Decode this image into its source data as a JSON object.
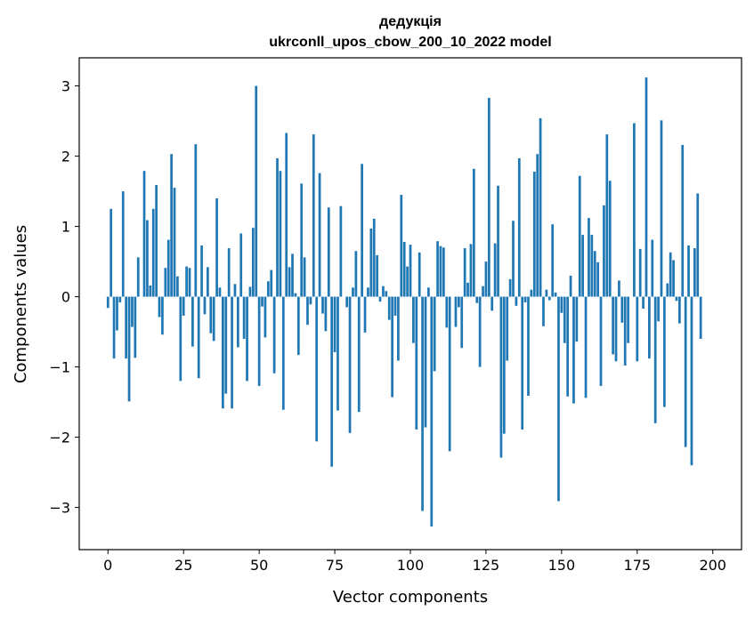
{
  "chart_data": {
    "type": "bar",
    "title": [
      "дедукція",
      "ukrconll_upos_cbow_200_10_2022 model"
    ],
    "xlabel": "Vector components",
    "ylabel": "Components values",
    "xlim": [
      -9.5,
      209.5
    ],
    "ylim": [
      -3.6,
      3.4
    ],
    "xticks": [
      0,
      25,
      50,
      75,
      100,
      125,
      150,
      175,
      200
    ],
    "xtick_labels": [
      "0",
      "25",
      "50",
      "75",
      "100",
      "125",
      "150",
      "175",
      "200"
    ],
    "yticks": [
      -3,
      -2,
      -1,
      0,
      1,
      2,
      3
    ],
    "ytick_labels": [
      "−3",
      "−2",
      "−1",
      "0",
      "1",
      "2",
      "3"
    ],
    "grid": false,
    "bar_color": "#1f77b4",
    "values": [
      -0.16,
      1.25,
      -0.88,
      -0.48,
      -0.08,
      1.5,
      -0.88,
      -1.49,
      -0.43,
      -0.87,
      0.56,
      0.0,
      1.79,
      1.09,
      0.16,
      1.25,
      1.59,
      -0.29,
      -0.54,
      0.41,
      0.81,
      2.03,
      1.55,
      0.29,
      -1.2,
      -0.27,
      0.43,
      0.41,
      -0.71,
      2.17,
      -1.16,
      0.73,
      -0.25,
      0.42,
      -0.52,
      -0.63,
      1.4,
      0.13,
      -1.59,
      -1.38,
      0.69,
      -1.59,
      0.18,
      -0.72,
      0.9,
      -0.6,
      -1.2,
      0.14,
      0.98,
      3.0,
      -1.27,
      -0.14,
      -0.58,
      0.22,
      0.38,
      -1.09,
      1.97,
      1.79,
      -1.61,
      2.33,
      0.42,
      0.61,
      0.05,
      -0.83,
      1.61,
      0.56,
      -0.4,
      -0.11,
      2.31,
      -2.06,
      1.76,
      -0.24,
      -0.49,
      1.27,
      -2.42,
      -0.79,
      -1.62,
      1.29,
      0.0,
      -0.15,
      -1.94,
      0.13,
      0.65,
      -1.64,
      1.89,
      -0.51,
      0.13,
      0.97,
      1.11,
      0.59,
      -0.07,
      0.15,
      0.08,
      -0.33,
      -1.43,
      -0.27,
      -0.91,
      1.45,
      0.78,
      0.43,
      0.74,
      -0.66,
      -1.89,
      0.63,
      -3.05,
      -1.86,
      0.13,
      -3.27,
      -1.06,
      0.79,
      0.72,
      0.7,
      -0.44,
      -2.2,
      0.0,
      -0.43,
      -0.15,
      -0.73,
      0.69,
      0.2,
      0.75,
      1.82,
      -0.09,
      -1.0,
      0.15,
      0.5,
      2.83,
      -0.2,
      0.76,
      1.58,
      -2.29,
      -1.95,
      -0.91,
      0.25,
      1.08,
      -0.13,
      1.97,
      -1.89,
      -0.08,
      -1.41,
      0.1,
      1.78,
      2.03,
      2.54,
      -0.42,
      0.1,
      -0.05,
      1.03,
      0.06,
      -2.91,
      -0.23,
      -0.66,
      -1.42,
      0.3,
      -1.52,
      -0.64,
      1.72,
      0.88,
      -1.44,
      1.12,
      0.88,
      0.65,
      0.49,
      -1.27,
      1.3,
      2.31,
      1.65,
      -0.82,
      -0.92,
      0.23,
      -0.37,
      -0.98,
      -0.66,
      0.0,
      2.47,
      -0.92,
      0.68,
      -0.17,
      3.12,
      -0.88,
      0.81,
      -1.8,
      -0.35,
      2.51,
      -1.57,
      0.19,
      0.63,
      0.52,
      -0.06,
      -0.38,
      2.16,
      -2.14,
      0.73,
      -2.4,
      0.69,
      1.47,
      -0.6
    ]
  }
}
